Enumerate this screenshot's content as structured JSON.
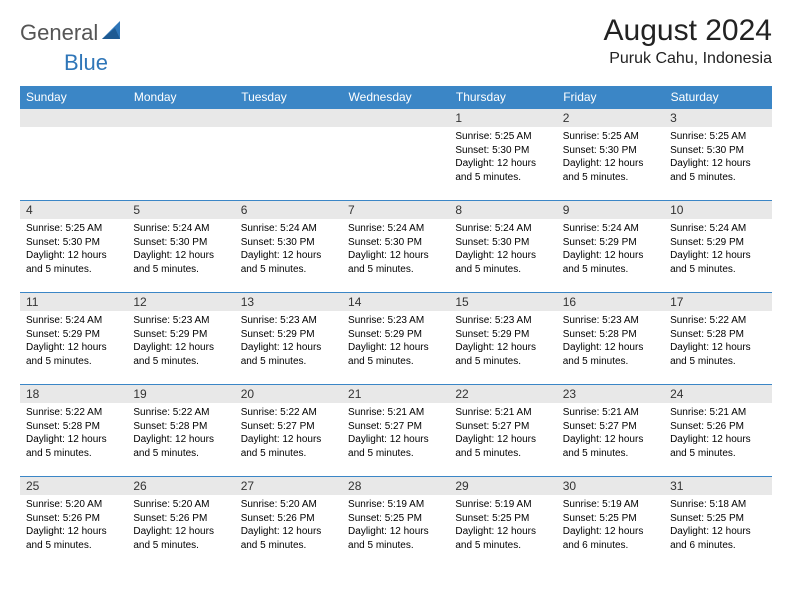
{
  "logo": {
    "general": "General",
    "blue": "Blue",
    "accent": "#2f76b8"
  },
  "title": "August 2024",
  "location": "Puruk Cahu, Indonesia",
  "day_headers": [
    "Sunday",
    "Monday",
    "Tuesday",
    "Wednesday",
    "Thursday",
    "Friday",
    "Saturday"
  ],
  "colors": {
    "header_bg": "#3b86c6",
    "week_divider": "#3b86c6",
    "daynum_bg": "#e8e8e8"
  },
  "weeks": [
    [
      {
        "num": "",
        "lines": []
      },
      {
        "num": "",
        "lines": []
      },
      {
        "num": "",
        "lines": []
      },
      {
        "num": "",
        "lines": []
      },
      {
        "num": "1",
        "lines": [
          "Sunrise: 5:25 AM",
          "Sunset: 5:30 PM",
          "Daylight: 12 hours",
          "and 5 minutes."
        ]
      },
      {
        "num": "2",
        "lines": [
          "Sunrise: 5:25 AM",
          "Sunset: 5:30 PM",
          "Daylight: 12 hours",
          "and 5 minutes."
        ]
      },
      {
        "num": "3",
        "lines": [
          "Sunrise: 5:25 AM",
          "Sunset: 5:30 PM",
          "Daylight: 12 hours",
          "and 5 minutes."
        ]
      }
    ],
    [
      {
        "num": "4",
        "lines": [
          "Sunrise: 5:25 AM",
          "Sunset: 5:30 PM",
          "Daylight: 12 hours",
          "and 5 minutes."
        ]
      },
      {
        "num": "5",
        "lines": [
          "Sunrise: 5:24 AM",
          "Sunset: 5:30 PM",
          "Daylight: 12 hours",
          "and 5 minutes."
        ]
      },
      {
        "num": "6",
        "lines": [
          "Sunrise: 5:24 AM",
          "Sunset: 5:30 PM",
          "Daylight: 12 hours",
          "and 5 minutes."
        ]
      },
      {
        "num": "7",
        "lines": [
          "Sunrise: 5:24 AM",
          "Sunset: 5:30 PM",
          "Daylight: 12 hours",
          "and 5 minutes."
        ]
      },
      {
        "num": "8",
        "lines": [
          "Sunrise: 5:24 AM",
          "Sunset: 5:30 PM",
          "Daylight: 12 hours",
          "and 5 minutes."
        ]
      },
      {
        "num": "9",
        "lines": [
          "Sunrise: 5:24 AM",
          "Sunset: 5:29 PM",
          "Daylight: 12 hours",
          "and 5 minutes."
        ]
      },
      {
        "num": "10",
        "lines": [
          "Sunrise: 5:24 AM",
          "Sunset: 5:29 PM",
          "Daylight: 12 hours",
          "and 5 minutes."
        ]
      }
    ],
    [
      {
        "num": "11",
        "lines": [
          "Sunrise: 5:24 AM",
          "Sunset: 5:29 PM",
          "Daylight: 12 hours",
          "and 5 minutes."
        ]
      },
      {
        "num": "12",
        "lines": [
          "Sunrise: 5:23 AM",
          "Sunset: 5:29 PM",
          "Daylight: 12 hours",
          "and 5 minutes."
        ]
      },
      {
        "num": "13",
        "lines": [
          "Sunrise: 5:23 AM",
          "Sunset: 5:29 PM",
          "Daylight: 12 hours",
          "and 5 minutes."
        ]
      },
      {
        "num": "14",
        "lines": [
          "Sunrise: 5:23 AM",
          "Sunset: 5:29 PM",
          "Daylight: 12 hours",
          "and 5 minutes."
        ]
      },
      {
        "num": "15",
        "lines": [
          "Sunrise: 5:23 AM",
          "Sunset: 5:29 PM",
          "Daylight: 12 hours",
          "and 5 minutes."
        ]
      },
      {
        "num": "16",
        "lines": [
          "Sunrise: 5:23 AM",
          "Sunset: 5:28 PM",
          "Daylight: 12 hours",
          "and 5 minutes."
        ]
      },
      {
        "num": "17",
        "lines": [
          "Sunrise: 5:22 AM",
          "Sunset: 5:28 PM",
          "Daylight: 12 hours",
          "and 5 minutes."
        ]
      }
    ],
    [
      {
        "num": "18",
        "lines": [
          "Sunrise: 5:22 AM",
          "Sunset: 5:28 PM",
          "Daylight: 12 hours",
          "and 5 minutes."
        ]
      },
      {
        "num": "19",
        "lines": [
          "Sunrise: 5:22 AM",
          "Sunset: 5:28 PM",
          "Daylight: 12 hours",
          "and 5 minutes."
        ]
      },
      {
        "num": "20",
        "lines": [
          "Sunrise: 5:22 AM",
          "Sunset: 5:27 PM",
          "Daylight: 12 hours",
          "and 5 minutes."
        ]
      },
      {
        "num": "21",
        "lines": [
          "Sunrise: 5:21 AM",
          "Sunset: 5:27 PM",
          "Daylight: 12 hours",
          "and 5 minutes."
        ]
      },
      {
        "num": "22",
        "lines": [
          "Sunrise: 5:21 AM",
          "Sunset: 5:27 PM",
          "Daylight: 12 hours",
          "and 5 minutes."
        ]
      },
      {
        "num": "23",
        "lines": [
          "Sunrise: 5:21 AM",
          "Sunset: 5:27 PM",
          "Daylight: 12 hours",
          "and 5 minutes."
        ]
      },
      {
        "num": "24",
        "lines": [
          "Sunrise: 5:21 AM",
          "Sunset: 5:26 PM",
          "Daylight: 12 hours",
          "and 5 minutes."
        ]
      }
    ],
    [
      {
        "num": "25",
        "lines": [
          "Sunrise: 5:20 AM",
          "Sunset: 5:26 PM",
          "Daylight: 12 hours",
          "and 5 minutes."
        ]
      },
      {
        "num": "26",
        "lines": [
          "Sunrise: 5:20 AM",
          "Sunset: 5:26 PM",
          "Daylight: 12 hours",
          "and 5 minutes."
        ]
      },
      {
        "num": "27",
        "lines": [
          "Sunrise: 5:20 AM",
          "Sunset: 5:26 PM",
          "Daylight: 12 hours",
          "and 5 minutes."
        ]
      },
      {
        "num": "28",
        "lines": [
          "Sunrise: 5:19 AM",
          "Sunset: 5:25 PM",
          "Daylight: 12 hours",
          "and 5 minutes."
        ]
      },
      {
        "num": "29",
        "lines": [
          "Sunrise: 5:19 AM",
          "Sunset: 5:25 PM",
          "Daylight: 12 hours",
          "and 5 minutes."
        ]
      },
      {
        "num": "30",
        "lines": [
          "Sunrise: 5:19 AM",
          "Sunset: 5:25 PM",
          "Daylight: 12 hours",
          "and 6 minutes."
        ]
      },
      {
        "num": "31",
        "lines": [
          "Sunrise: 5:18 AM",
          "Sunset: 5:25 PM",
          "Daylight: 12 hours",
          "and 6 minutes."
        ]
      }
    ]
  ]
}
